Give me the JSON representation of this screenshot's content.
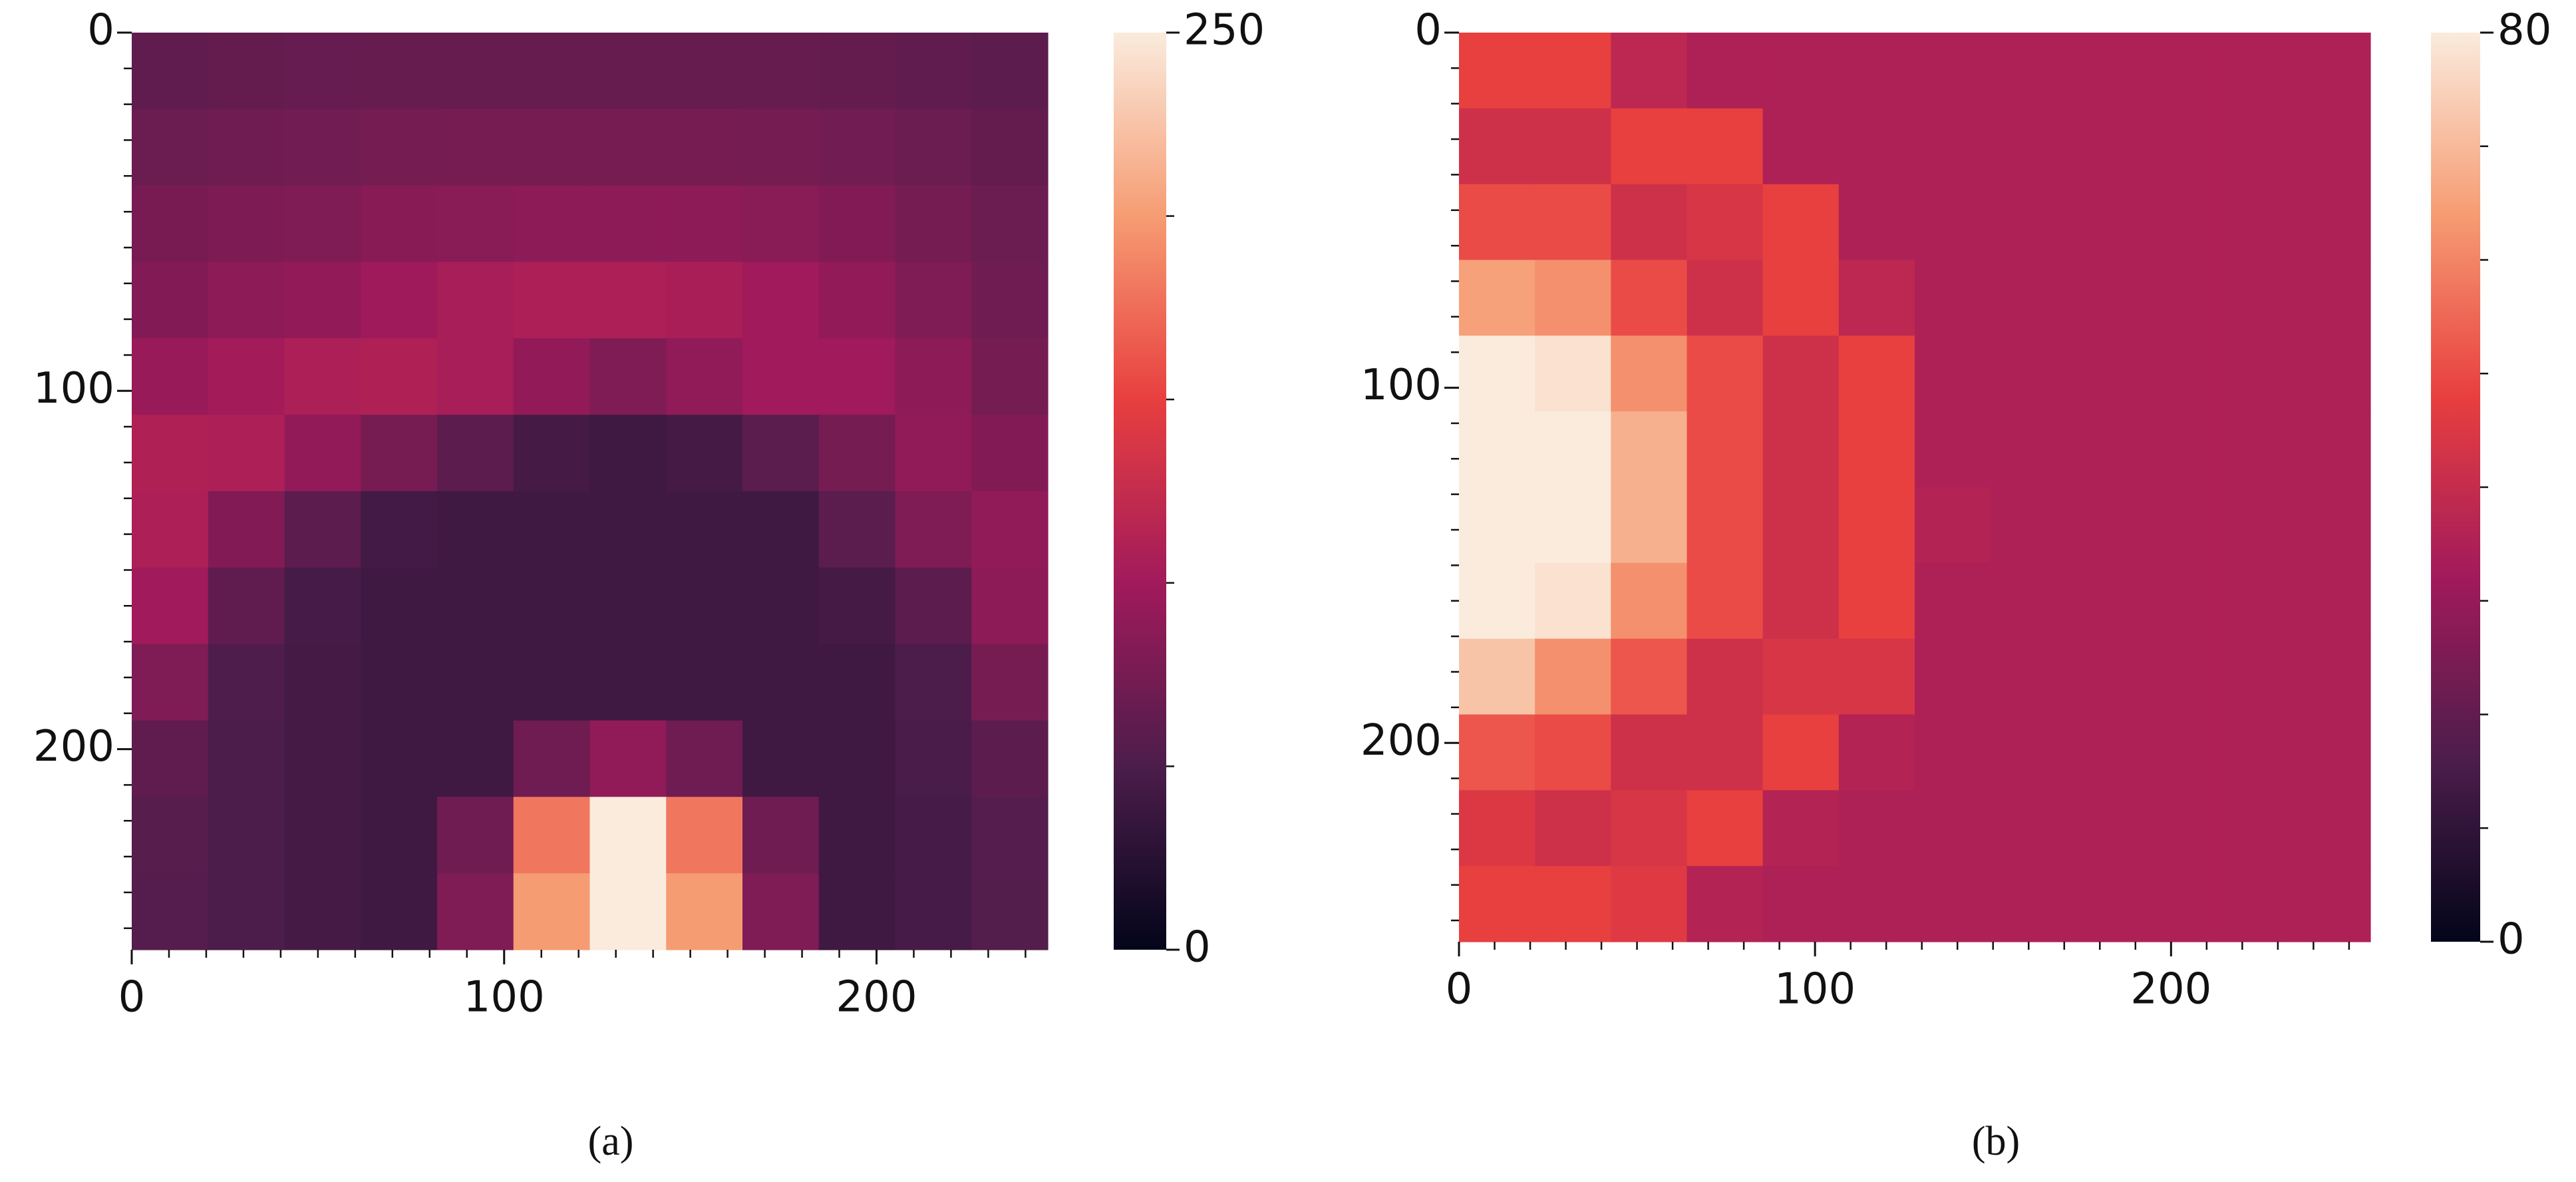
{
  "chart_data": [
    {
      "type": "heatmap",
      "caption": "(a)",
      "xlim": [
        0,
        246
      ],
      "ylim": [
        0,
        256
      ],
      "y_inverted": true,
      "xticks": [
        0,
        100,
        200
      ],
      "yticks": [
        0,
        100,
        200
      ],
      "xminor": [
        10,
        20,
        30,
        40,
        50,
        60,
        70,
        80,
        90,
        110,
        120,
        130,
        140,
        150,
        160,
        170,
        180,
        190,
        210,
        220,
        230,
        240
      ],
      "yminor": [
        10,
        20,
        30,
        40,
        50,
        60,
        70,
        80,
        90,
        110,
        120,
        130,
        140,
        150,
        160,
        170,
        180,
        190,
        210,
        220,
        230,
        240,
        250
      ],
      "colors": [
        "#03051a",
        "#4c1d4b",
        "#a11a5b",
        "#e83f3f",
        "#f69c73",
        "#faebdd"
      ],
      "clim": [
        0,
        250
      ],
      "cticks": [
        0,
        250
      ],
      "cminor": [
        50,
        100,
        150,
        200
      ],
      "z": [
        [
          62,
          64,
          65,
          66,
          66,
          66,
          66,
          66,
          66,
          64,
          62,
          60
        ],
        [
          68,
          70,
          72,
          74,
          75,
          75,
          75,
          75,
          74,
          72,
          68,
          64
        ],
        [
          76,
          78,
          80,
          85,
          86,
          88,
          88,
          88,
          86,
          82,
          74,
          68
        ],
        [
          82,
          88,
          92,
          98,
          105,
          108,
          108,
          106,
          100,
          92,
          80,
          70
        ],
        [
          95,
          102,
          108,
          110,
          105,
          92,
          80,
          90,
          100,
          100,
          88,
          74
        ],
        [
          110,
          108,
          92,
          75,
          60,
          45,
          42,
          45,
          58,
          74,
          90,
          82
        ],
        [
          108,
          82,
          60,
          44,
          42,
          42,
          42,
          42,
          42,
          58,
          80,
          90
        ],
        [
          100,
          62,
          46,
          42,
          42,
          42,
          42,
          42,
          42,
          45,
          60,
          88
        ],
        [
          80,
          52,
          45,
          42,
          42,
          42,
          42,
          42,
          42,
          42,
          50,
          75
        ],
        [
          62,
          50,
          45,
          42,
          42,
          70,
          90,
          70,
          42,
          42,
          48,
          60
        ],
        [
          56,
          50,
          45,
          42,
          70,
          180,
          250,
          180,
          70,
          42,
          46,
          55
        ],
        [
          55,
          50,
          45,
          42,
          80,
          200,
          250,
          200,
          80,
          42,
          46,
          54
        ]
      ]
    },
    {
      "type": "heatmap",
      "caption": "(b)",
      "xlim": [
        0,
        256
      ],
      "ylim": [
        0,
        256
      ],
      "y_inverted": true,
      "xticks": [
        0,
        100,
        200
      ],
      "yticks": [
        0,
        100,
        200
      ],
      "xminor": [
        10,
        20,
        30,
        40,
        50,
        60,
        70,
        80,
        90,
        110,
        120,
        130,
        140,
        150,
        160,
        170,
        180,
        190,
        210,
        220,
        230,
        240,
        250
      ],
      "yminor": [
        10,
        20,
        30,
        40,
        50,
        60,
        70,
        80,
        90,
        110,
        120,
        130,
        140,
        150,
        160,
        170,
        180,
        190,
        210,
        220,
        230,
        240,
        250
      ],
      "colors": [
        "#03051a",
        "#4c1d4b",
        "#a11a5b",
        "#e83f3f",
        "#f69c73",
        "#faebdd"
      ],
      "clim": [
        0,
        80
      ],
      "cticks": [
        0,
        80
      ],
      "cminor": [
        10,
        20,
        30,
        40,
        50,
        60,
        70
      ],
      "z": [
        [
          48,
          48,
          38,
          35,
          35,
          35,
          35,
          35,
          35,
          35,
          35,
          35
        ],
        [
          42,
          42,
          48,
          48,
          35,
          35,
          35,
          35,
          35,
          35,
          35,
          35
        ],
        [
          50,
          50,
          42,
          44,
          48,
          35,
          35,
          35,
          35,
          35,
          35,
          35
        ],
        [
          65,
          62,
          50,
          42,
          48,
          38,
          35,
          35,
          35,
          35,
          35,
          35
        ],
        [
          80,
          78,
          62,
          50,
          42,
          48,
          35,
          35,
          35,
          35,
          35,
          35
        ],
        [
          80,
          80,
          68,
          50,
          42,
          48,
          35,
          35,
          35,
          35,
          35,
          35
        ],
        [
          80,
          80,
          68,
          50,
          42,
          48,
          36,
          35,
          35,
          35,
          35,
          35
        ],
        [
          80,
          78,
          62,
          50,
          42,
          48,
          35,
          35,
          35,
          35,
          35,
          35
        ],
        [
          72,
          62,
          52,
          42,
          44,
          44,
          35,
          35,
          35,
          35,
          35,
          35
        ],
        [
          52,
          50,
          42,
          42,
          48,
          36,
          35,
          35,
          35,
          35,
          35,
          35
        ],
        [
          45,
          42,
          44,
          48,
          36,
          35,
          35,
          35,
          35,
          35,
          35,
          35
        ],
        [
          48,
          48,
          46,
          36,
          35,
          35,
          35,
          35,
          35,
          35,
          35,
          35
        ]
      ]
    }
  ]
}
